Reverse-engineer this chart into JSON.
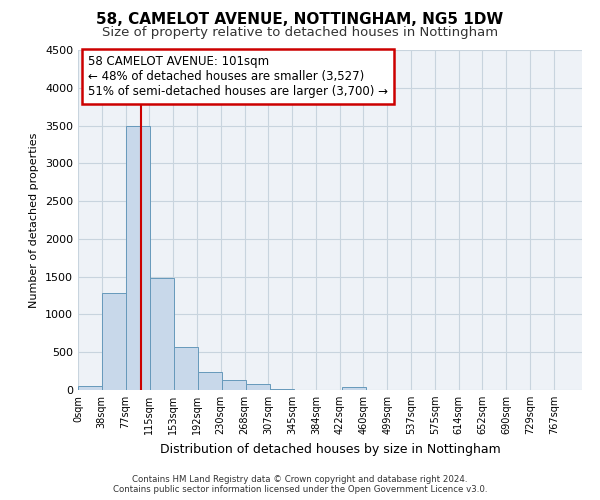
{
  "title": "58, CAMELOT AVENUE, NOTTINGHAM, NG5 1DW",
  "subtitle": "Size of property relative to detached houses in Nottingham",
  "xlabel": "Distribution of detached houses by size in Nottingham",
  "ylabel": "Number of detached properties",
  "bar_left_edges": [
    0,
    38,
    77,
    115,
    153,
    192,
    230,
    268,
    307,
    345,
    384,
    422,
    460,
    499,
    537,
    575,
    614,
    652,
    690,
    729
  ],
  "bar_heights": [
    50,
    1280,
    3500,
    1480,
    575,
    240,
    130,
    80,
    15,
    5,
    0,
    40,
    0,
    0,
    0,
    0,
    0,
    0,
    0,
    0
  ],
  "bin_width": 38,
  "bar_color": "#c8d8ea",
  "bar_edge_color": "#6699bb",
  "vline_color": "#cc0000",
  "vline_x": 101,
  "ylim": [
    0,
    4500
  ],
  "yticks": [
    0,
    500,
    1000,
    1500,
    2000,
    2500,
    3000,
    3500,
    4000,
    4500
  ],
  "xlim_max": 805,
  "xtick_labels": [
    "0sqm",
    "38sqm",
    "77sqm",
    "115sqm",
    "153sqm",
    "192sqm",
    "230sqm",
    "268sqm",
    "307sqm",
    "345sqm",
    "384sqm",
    "422sqm",
    "460sqm",
    "499sqm",
    "537sqm",
    "575sqm",
    "614sqm",
    "652sqm",
    "690sqm",
    "729sqm",
    "767sqm"
  ],
  "annotation_line1": "58 CAMELOT AVENUE: 101sqm",
  "annotation_line2": "← 48% of detached houses are smaller (3,527)",
  "annotation_line3": "51% of semi-detached houses are larger (3,700) →",
  "annotation_box_facecolor": "#ffffff",
  "annotation_box_edgecolor": "#cc0000",
  "grid_color": "#c8d4de",
  "bg_color": "#ffffff",
  "plot_bg_color": "#eef2f7",
  "title_fontsize": 11,
  "subtitle_fontsize": 9.5,
  "ylabel_fontsize": 8,
  "xlabel_fontsize": 9,
  "footer_line1": "Contains HM Land Registry data © Crown copyright and database right 2024.",
  "footer_line2": "Contains public sector information licensed under the Open Government Licence v3.0."
}
